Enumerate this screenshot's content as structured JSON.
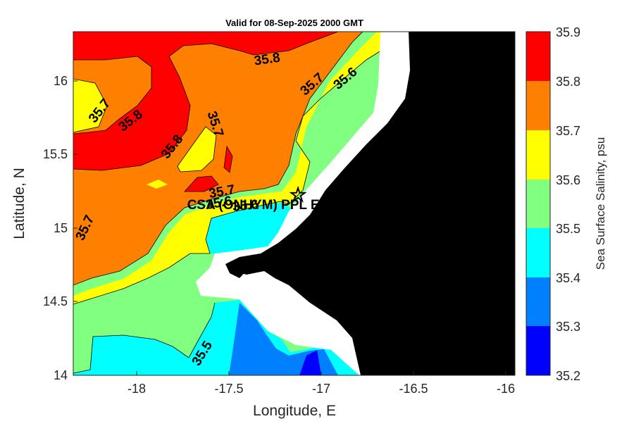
{
  "title": "Valid for 08-Sep-2025 2000 GMT",
  "xlabel": "Longitude, E",
  "ylabel": "Latitude, N",
  "x_ticks": [
    "-18",
    "-17.5",
    "-17",
    "-16.5",
    "-16"
  ],
  "y_ticks": [
    "16",
    "15.5",
    "15",
    "14.5",
    "14"
  ],
  "station_label": "CSA (ONHYM) PPL EP",
  "colorbar": {
    "label": "Sea Surface Salinity, psu",
    "ticks": [
      "35.9",
      "35.8",
      "35.7",
      "35.6",
      "35.5",
      "35.4",
      "35.3",
      "35.2"
    ],
    "colors": [
      "#ff0000",
      "#ff8000",
      "#ffff00",
      "#80ff80",
      "#00ffff",
      "#0080ff",
      "#0000ff"
    ]
  },
  "contour_labels": [
    {
      "text": "35.8"
    },
    {
      "text": "35.7"
    },
    {
      "text": "35.6"
    },
    {
      "text": "35.7"
    },
    {
      "text": "35.8"
    },
    {
      "text": "35.7"
    },
    {
      "text": "35.8"
    },
    {
      "text": "35.7"
    },
    {
      "text": "35.7"
    },
    {
      "text": "35.6"
    },
    {
      "text": "35.6"
    },
    {
      "text": "35.5"
    }
  ],
  "chart_data": {
    "type": "heatmap",
    "title": "Valid for 08-Sep-2025 2000 GMT",
    "xlabel": "Longitude, E",
    "ylabel": "Latitude, N",
    "xlim": [
      -18.35,
      -15.92
    ],
    "ylim": [
      14.0,
      16.34
    ],
    "variable": "Sea Surface Salinity, psu",
    "color_levels": [
      35.2,
      35.3,
      35.4,
      35.5,
      35.6,
      35.7,
      35.8,
      35.9
    ],
    "station": {
      "label": "CSA (ONHYM) PPL EP",
      "lon": -17.1,
      "lat": 15.22
    },
    "contour_values": [
      35.5,
      35.6,
      35.7,
      35.8
    ]
  }
}
